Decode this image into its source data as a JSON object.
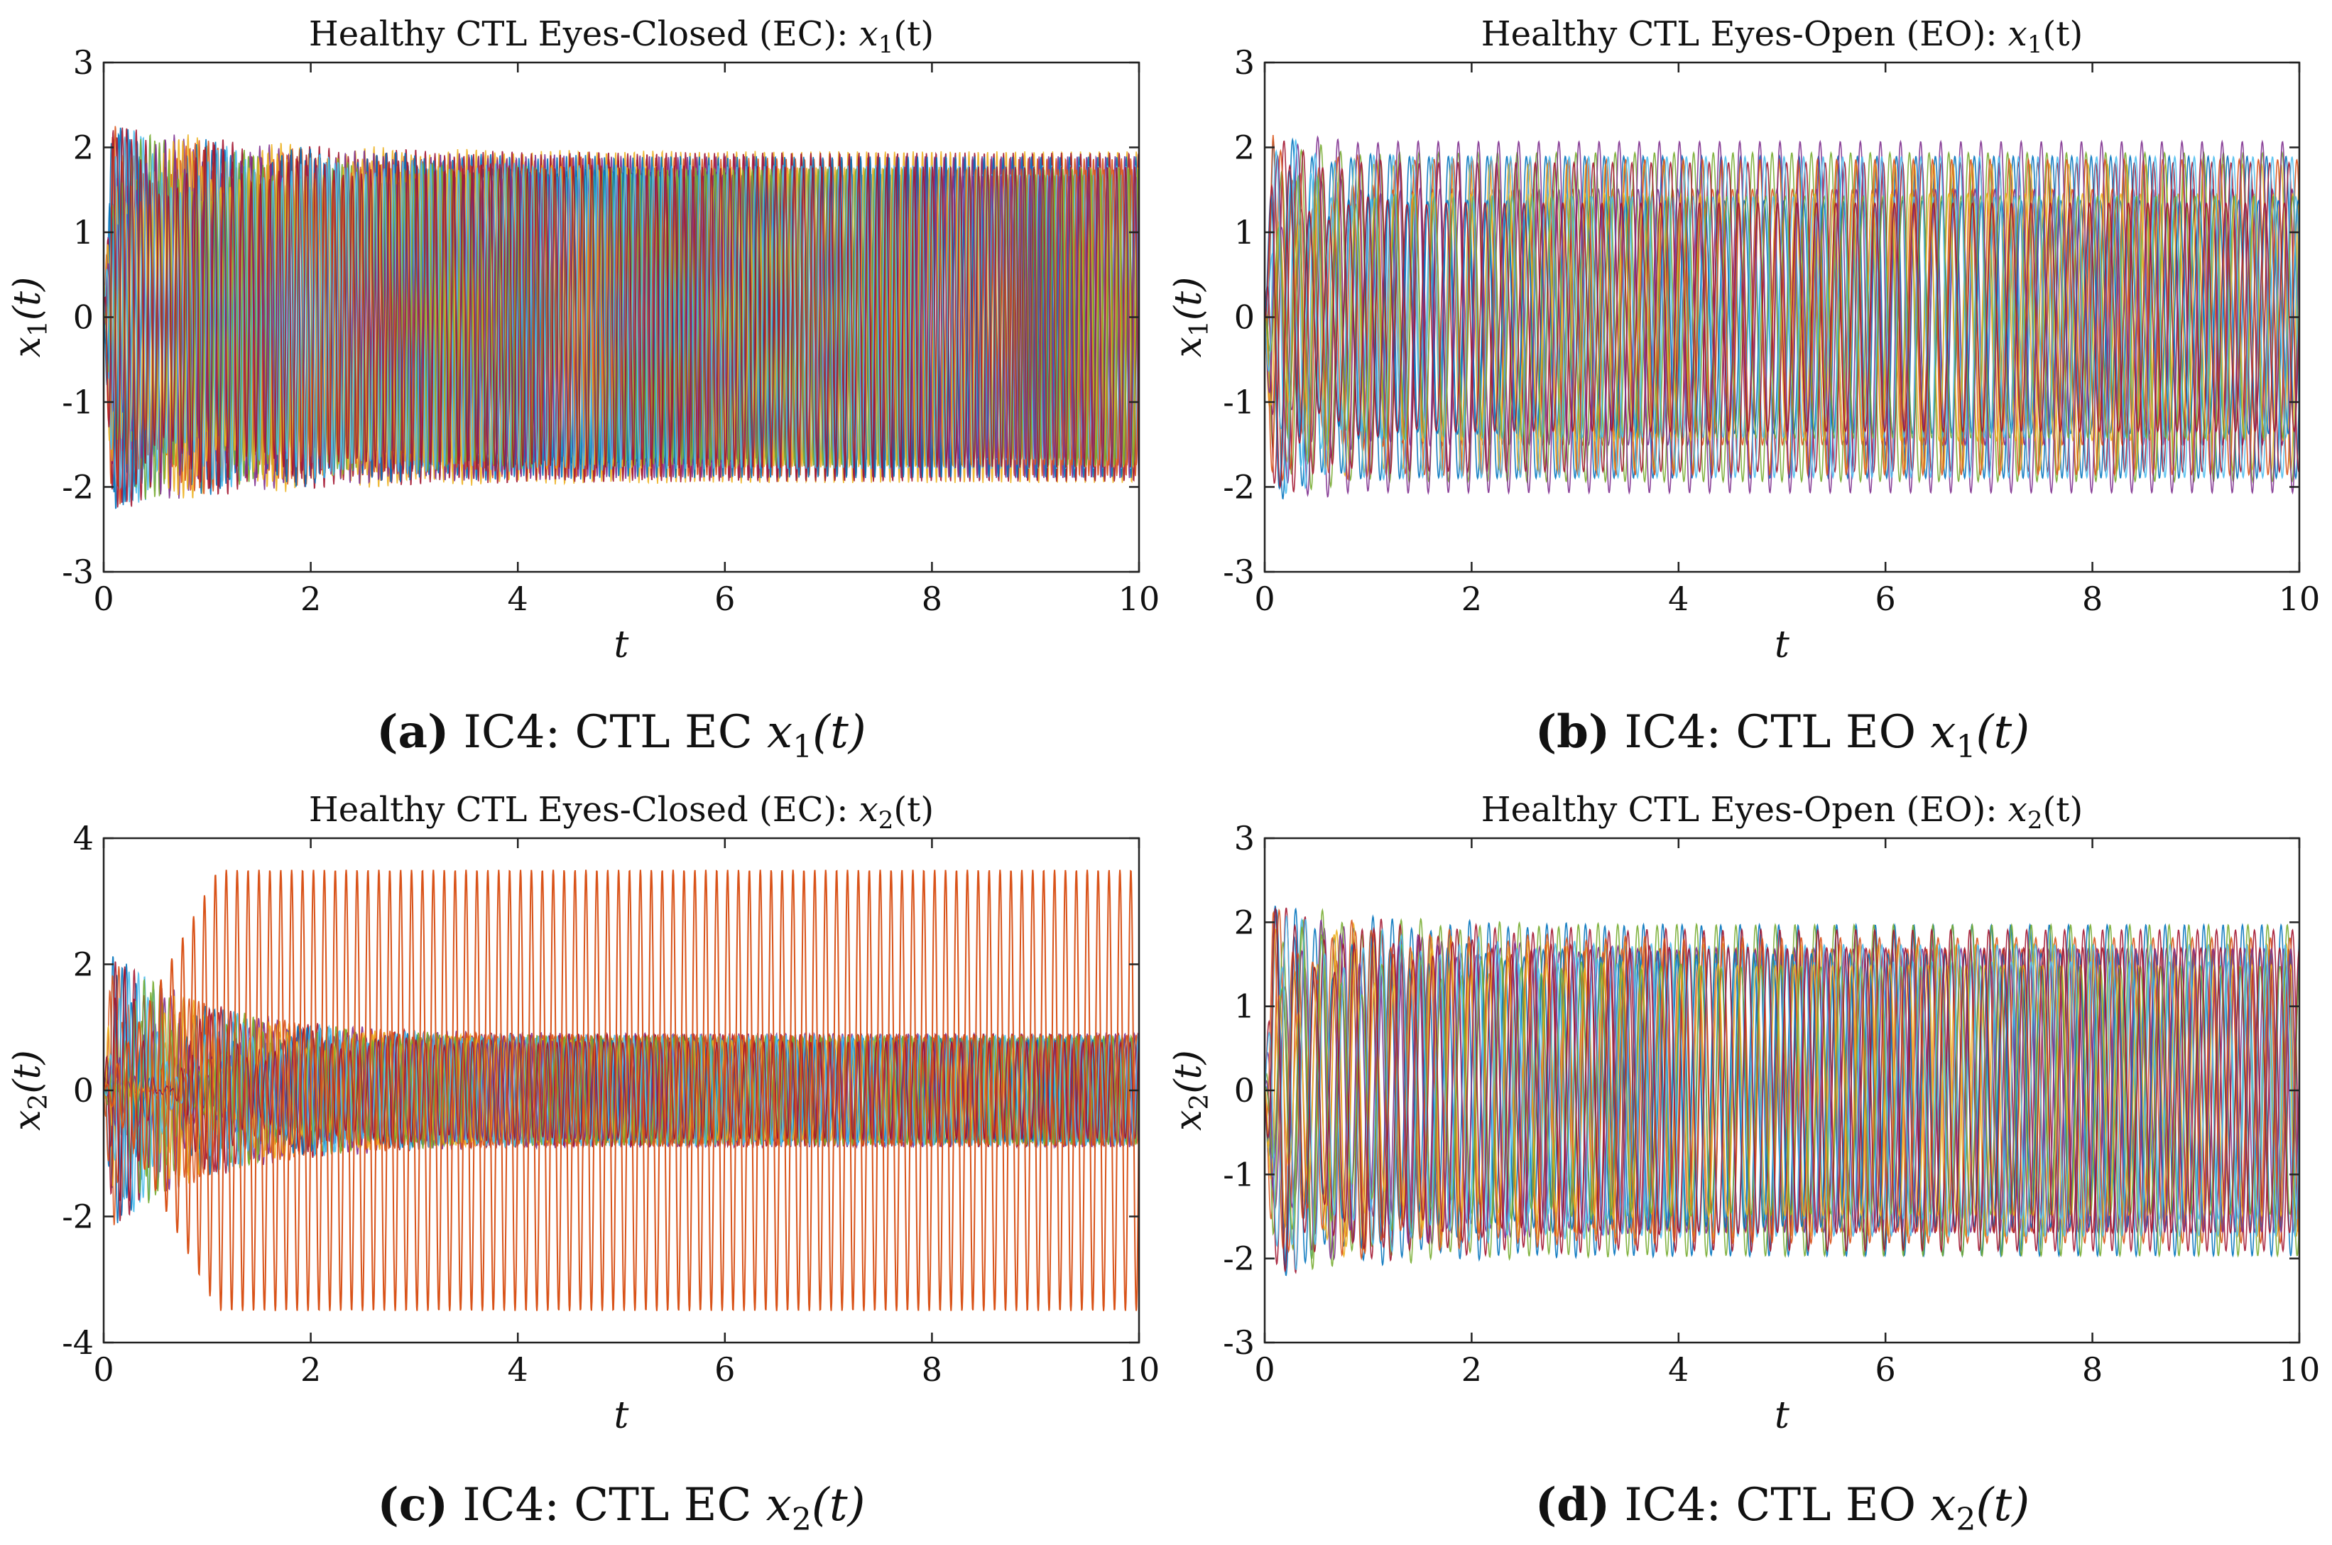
{
  "colors": [
    "#0072BD",
    "#D95319",
    "#EDB120",
    "#7E2F8E",
    "#77AC30",
    "#4DBEEE",
    "#A2142F"
  ],
  "chart_data": [
    {
      "id": "a",
      "type": "line",
      "title_main": "Healthy CTL Eyes-Closed (EC): ",
      "title_var": "x",
      "title_sub": "1",
      "title_arg": "(t)",
      "xlabel": "t",
      "ylabel_var": "x",
      "ylabel_sub": "1",
      "ylabel_arg": "(t)",
      "xlim": [
        0,
        10
      ],
      "ylim": [
        -3,
        3
      ],
      "xticks": [
        "0",
        "2",
        "4",
        "6",
        "8",
        "10"
      ],
      "yticks": [
        "3",
        "2",
        "1",
        "0",
        "-1",
        "-2",
        "-3"
      ],
      "caption_letter": "(a)",
      "caption_text": " IC4: CTL EC ",
      "caption_var": "x",
      "caption_sub": "1",
      "caption_arg": "(t)",
      "envelope_amplitude": 2.0,
      "transient_peak": 2.3,
      "settle_time": 1.5,
      "oscillation_cycles_per_unit": 11,
      "num_traces": 14,
      "outlier_amplitude": null
    },
    {
      "id": "b",
      "type": "line",
      "title_main": "Healthy CTL Eyes-Open (EO): ",
      "title_var": "x",
      "title_sub": "1",
      "title_arg": "(t)",
      "xlabel": "t",
      "ylabel_var": "x",
      "ylabel_sub": "1",
      "ylabel_arg": "(t)",
      "xlim": [
        0,
        10
      ],
      "ylim": [
        -3,
        3
      ],
      "xticks": [
        "0",
        "2",
        "4",
        "6",
        "8",
        "10"
      ],
      "yticks": [
        "3",
        "2",
        "1",
        "0",
        "-1",
        "-2",
        "-3"
      ],
      "caption_letter": "(b)",
      "caption_text": " IC4: CTL EO ",
      "caption_var": "x",
      "caption_sub": "1",
      "caption_arg": "(t)",
      "envelope_amplitude": 2.2,
      "inner_band": 1.6,
      "transient_peak": 2.3,
      "settle_time": 0.4,
      "oscillation_cycles_per_unit": 5.3,
      "num_traces": 14,
      "outlier_amplitude": null
    },
    {
      "id": "c",
      "type": "line",
      "title_main": "Healthy CTL Eyes-Closed (EC): ",
      "title_var": "x",
      "title_sub": "2",
      "title_arg": "(t)",
      "xlabel": "t",
      "ylabel_var": "x",
      "ylabel_sub": "2",
      "ylabel_arg": "(t)",
      "xlim": [
        0,
        10
      ],
      "ylim": [
        -4,
        4
      ],
      "xticks": [
        "0",
        "2",
        "4",
        "6",
        "8",
        "10"
      ],
      "yticks": [
        "4",
        "2",
        "0",
        "-2",
        "-4"
      ],
      "caption_letter": "(c)",
      "caption_text": " IC4: CTL EC ",
      "caption_var": "x",
      "caption_sub": "2",
      "caption_arg": "(t)",
      "envelope_amplitude": 0.9,
      "transient_peak": 2.3,
      "settle_time": 1.0,
      "oscillation_cycles_per_unit": 11,
      "num_traces": 14,
      "outlier_amplitude": 3.5
    },
    {
      "id": "d",
      "type": "line",
      "title_main": "Healthy CTL Eyes-Open (EO): ",
      "title_var": "x",
      "title_sub": "2",
      "title_arg": "(t)",
      "xlabel": "t",
      "ylabel_var": "x",
      "ylabel_sub": "2",
      "ylabel_arg": "(t)",
      "xlim": [
        0,
        10
      ],
      "ylim": [
        -3,
        3
      ],
      "xticks": [
        "0",
        "2",
        "4",
        "6",
        "8",
        "10"
      ],
      "yticks": [
        "3",
        "2",
        "1",
        "0",
        "-1",
        "-2",
        "-3"
      ],
      "caption_letter": "(d)",
      "caption_text": " IC4: CTL EO ",
      "caption_var": "x",
      "caption_sub": "2",
      "caption_arg": "(t)",
      "envelope_amplitude": 2.1,
      "inner_band": 1.8,
      "transient_peak": 2.25,
      "settle_time": 1.2,
      "oscillation_cycles_per_unit": 5.3,
      "num_traces": 14,
      "outlier_amplitude": null
    }
  ]
}
